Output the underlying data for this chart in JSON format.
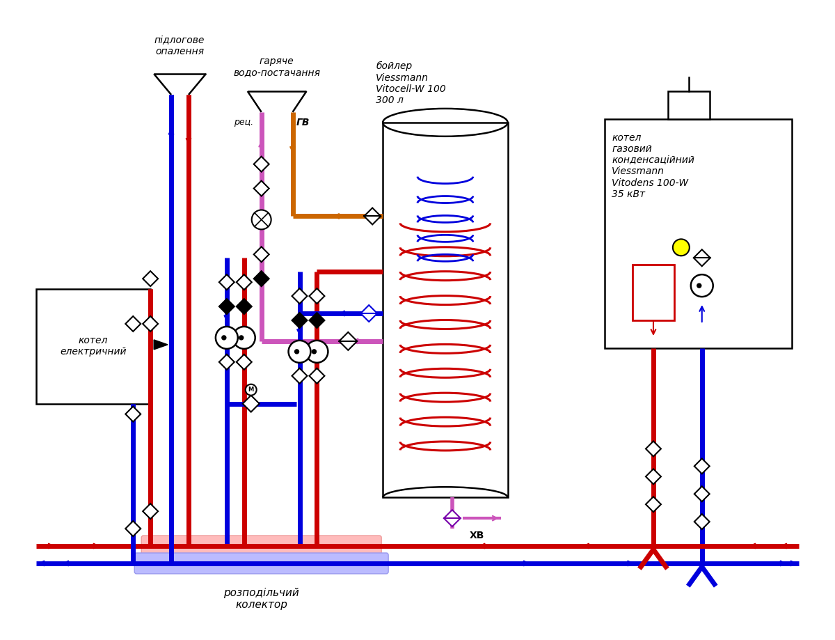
{
  "bg_color": "#ffffff",
  "red": "#cc0000",
  "blue": "#0000dd",
  "orange": "#cc6600",
  "purple": "#cc55bb",
  "pipe_lw": 5,
  "labels": {
    "floor_heating": "підлогове\nопалення",
    "hot_water": "гаряче\nводо-постачання",
    "boiler_label": "бойлер\nViessmann\nVitocell-W 100\n300 л",
    "gas_boiler_label": "котел\nгазовий\nконденсаційний\nViessmann\nVitodens 100-W\n35 кВт",
    "electric_boiler": "котел\nелектричний",
    "collector": "розподільчий\nколектор",
    "rec": "рец.",
    "gv": "ГВ",
    "xv": "ХВ"
  }
}
